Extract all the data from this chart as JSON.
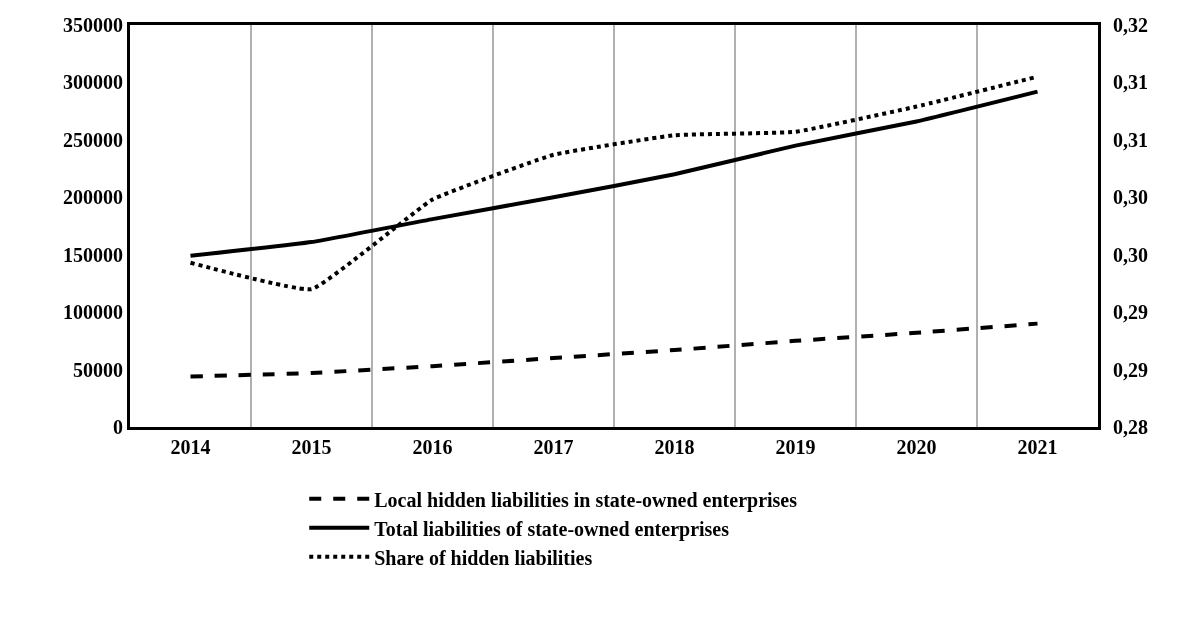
{
  "chart_data": {
    "type": "line",
    "categories": [
      "2014",
      "2015",
      "2016",
      "2017",
      "2018",
      "2019",
      "2020",
      "2021"
    ],
    "series": [
      {
        "name": "Local hidden liabilities in state-owned enterprises",
        "color": "#000000",
        "line_style": "dashed",
        "values": [
          44000,
          47000,
          53000,
          60000,
          67000,
          75000,
          82000,
          90000
        ]
      },
      {
        "name": "Total liabilities of state-owned enterprises",
        "color": "#000000",
        "line_style": "solid",
        "values": [
          149000,
          161000,
          181000,
          200000,
          220000,
          245000,
          266000,
          292000
        ]
      },
      {
        "name": "Share of hidden liabilities",
        "color": "#000000",
        "line_style": "dotted",
        "axis": "y2",
        "values": [
          0.2943,
          0.292,
          0.2998,
          0.3037,
          0.3054,
          0.3057,
          0.3079,
          0.3105
        ]
      }
    ],
    "ylim": [
      0,
      350000
    ],
    "yticks": [
      0,
      50000,
      100000,
      150000,
      200000,
      250000,
      300000,
      350000
    ],
    "y2lim": [
      0.28,
      0.315
    ],
    "y2ticks": [
      {
        "value": 0.28,
        "label": "0,28"
      },
      {
        "value": 0.285,
        "label": "0,29"
      },
      {
        "value": 0.29,
        "label": "0,29"
      },
      {
        "value": 0.295,
        "label": "0,30"
      },
      {
        "value": 0.3,
        "label": "0,30"
      },
      {
        "value": 0.305,
        "label": "0,31"
      },
      {
        "value": 0.31,
        "label": "0,31"
      },
      {
        "value": 0.315,
        "label": "0,32"
      }
    ],
    "grid": "x",
    "legend": "bottom",
    "marker": "none"
  }
}
